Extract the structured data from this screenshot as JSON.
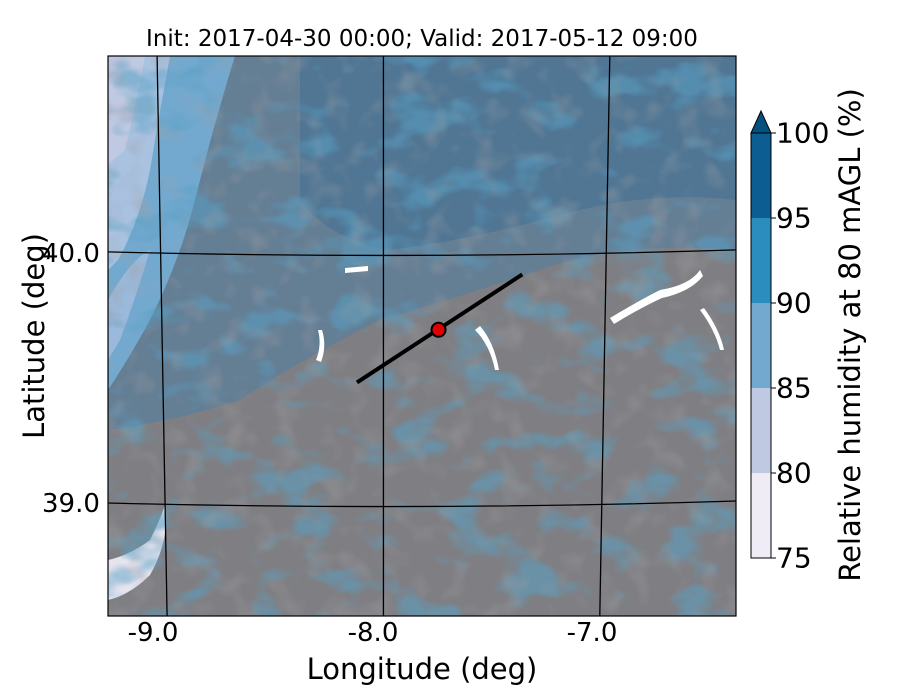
{
  "title": "Init: 2017-04-30 00:00; Valid: 2017-05-12 09:00",
  "x_axis": {
    "label": "Longitude (deg)",
    "ticks": [
      "-9.0",
      "-8.0",
      "-7.0"
    ]
  },
  "y_axis": {
    "label": "Latitude (deg)",
    "ticks": [
      "40.0",
      "39.0"
    ]
  },
  "colorbar": {
    "label": "Relative humidity at 80 mAGL (%)",
    "ticks": [
      "75",
      "80",
      "85",
      "90",
      "95",
      "100"
    ],
    "levels": [
      75,
      80,
      85,
      90,
      95,
      100
    ],
    "colors": [
      "#f0ecf6",
      "#bfc9e2",
      "#74a9cf",
      "#2b8cbe",
      "#0c5d92",
      "#04507f"
    ],
    "extend": "max",
    "terrain_mask_color": "#7d7d80"
  },
  "map_extent": {
    "lon_min": -9.25,
    "lon_max": -6.4,
    "lat_min": 38.55,
    "lat_max": 40.78
  },
  "transect": {
    "start": {
      "lon": -8.12,
      "lat": 39.48
    },
    "end": {
      "lon": -7.37,
      "lat": 39.91
    }
  },
  "marker": {
    "lon": -7.75,
    "lat": 39.69,
    "color": "#e00000"
  }
}
